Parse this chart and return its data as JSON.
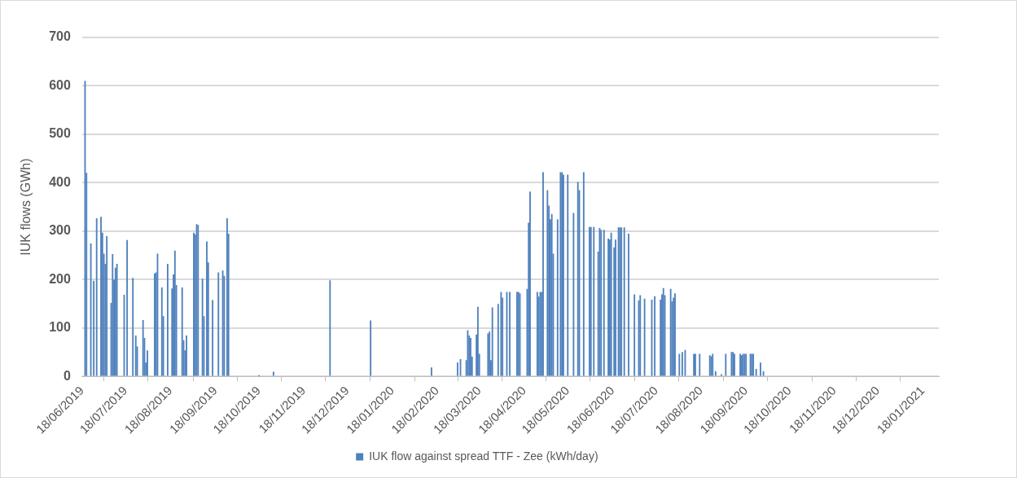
{
  "chart_data": {
    "type": "bar",
    "ylabel": "IUK flows (GWh)",
    "x": [
      "2019-06-20",
      "2019-06-21",
      "2019-06-24",
      "2019-06-26",
      "2019-06-28",
      "2019-07-01",
      "2019-07-02",
      "2019-07-03",
      "2019-07-04",
      "2019-07-05",
      "2019-07-08",
      "2019-07-09",
      "2019-07-10",
      "2019-07-11",
      "2019-07-12",
      "2019-07-17",
      "2019-07-19",
      "2019-07-23",
      "2019-07-25",
      "2019-07-26",
      "2019-07-30",
      "2019-07-31",
      "2019-08-01",
      "2019-08-02",
      "2019-08-07",
      "2019-08-08",
      "2019-08-09",
      "2019-08-12",
      "2019-08-13",
      "2019-08-16",
      "2019-08-19",
      "2019-08-20",
      "2019-08-21",
      "2019-08-22",
      "2019-08-26",
      "2019-08-27",
      "2019-08-28",
      "2019-08-29",
      "2019-09-03",
      "2019-09-04",
      "2019-09-05",
      "2019-09-06",
      "2019-09-09",
      "2019-09-10",
      "2019-09-12",
      "2019-09-13",
      "2019-09-16",
      "2019-09-20",
      "2019-09-23",
      "2019-09-24",
      "2019-09-26",
      "2019-09-27",
      "2019-10-18",
      "2019-10-28",
      "2019-12-06",
      "2020-01-03",
      "2020-02-14",
      "2020-03-03",
      "2020-03-05",
      "2020-03-09",
      "2020-03-10",
      "2020-03-11",
      "2020-03-12",
      "2020-03-13",
      "2020-03-16",
      "2020-03-17",
      "2020-03-18",
      "2020-03-24",
      "2020-03-25",
      "2020-03-26",
      "2020-03-27",
      "2020-03-31",
      "2020-04-02",
      "2020-04-03",
      "2020-04-06",
      "2020-04-08",
      "2020-04-13",
      "2020-04-14",
      "2020-04-15",
      "2020-04-20",
      "2020-04-21",
      "2020-04-22",
      "2020-04-27",
      "2020-04-28",
      "2020-04-29",
      "2020-04-30",
      "2020-05-01",
      "2020-05-04",
      "2020-05-05",
      "2020-05-06",
      "2020-05-07",
      "2020-05-08",
      "2020-05-11",
      "2020-05-13",
      "2020-05-14",
      "2020-05-15",
      "2020-05-18",
      "2020-05-22",
      "2020-05-25",
      "2020-05-26",
      "2020-05-29",
      "2020-06-02",
      "2020-06-03",
      "2020-06-05",
      "2020-06-08",
      "2020-06-09",
      "2020-06-10",
      "2020-06-12",
      "2020-06-15",
      "2020-06-16",
      "2020-06-17",
      "2020-06-19",
      "2020-06-20",
      "2020-06-22",
      "2020-06-23",
      "2020-06-24",
      "2020-06-26",
      "2020-06-29",
      "2020-07-03",
      "2020-07-06",
      "2020-07-07",
      "2020-07-10",
      "2020-07-15",
      "2020-07-17",
      "2020-07-21",
      "2020-07-22",
      "2020-07-23",
      "2020-07-24",
      "2020-07-28",
      "2020-07-29",
      "2020-07-30",
      "2020-07-31",
      "2020-08-03",
      "2020-08-05",
      "2020-08-07",
      "2020-08-13",
      "2020-08-14",
      "2020-08-17",
      "2020-08-24",
      "2020-08-25",
      "2020-08-26",
      "2020-08-28",
      "2020-09-01",
      "2020-09-04",
      "2020-09-08",
      "2020-09-09",
      "2020-09-10",
      "2020-09-14",
      "2020-09-15",
      "2020-09-16",
      "2020-09-17",
      "2020-09-18",
      "2020-09-21",
      "2020-09-22",
      "2020-09-23",
      "2020-09-25",
      "2020-09-28",
      "2020-09-30"
    ],
    "series": [
      {
        "name": "IUK flow against spread TTF - Zee (kWh/day)",
        "color": "#4f81bd",
        "values": [
          610,
          420,
          274,
          197,
          326,
          329,
          296,
          253,
          232,
          289,
          151,
          252,
          199,
          224,
          232,
          168,
          281,
          203,
          84,
          61,
          116,
          79,
          28,
          53,
          212,
          214,
          253,
          183,
          124,
          232,
          181,
          210,
          259,
          188,
          183,
          74,
          53,
          84,
          296,
          293,
          314,
          312,
          201,
          124,
          278,
          235,
          157,
          214,
          218,
          207,
          326,
          294,
          1,
          9,
          198,
          115,
          18,
          28,
          35,
          33,
          95,
          84,
          79,
          40,
          86,
          143,
          46,
          88,
          92,
          33,
          142,
          149,
          174,
          162,
          174,
          174,
          174,
          174,
          171,
          180,
          317,
          381,
          174,
          164,
          174,
          174,
          421,
          384,
          352,
          324,
          335,
          253,
          324,
          421,
          421,
          416,
          416,
          337,
          401,
          384,
          421,
          308,
          308,
          308,
          257,
          306,
          302,
          302,
          284,
          282,
          296,
          266,
          282,
          307,
          307,
          307,
          307,
          294,
          169,
          156,
          167,
          160,
          158,
          165,
          158,
          169,
          182,
          167,
          180,
          154,
          162,
          171,
          46,
          50,
          54,
          46,
          46,
          46,
          43,
          41,
          46,
          10,
          4,
          46,
          50,
          50,
          46,
          46,
          43,
          46,
          46,
          46,
          46,
          46,
          46,
          15,
          28,
          10
        ]
      }
    ],
    "xlim": [
      "2019-06-18",
      "2021-01-29"
    ],
    "xticks": [
      {
        "value": "2019-06-18",
        "label": "18/06/2019"
      },
      {
        "value": "2019-07-18",
        "label": "18/07/2019"
      },
      {
        "value": "2019-08-18",
        "label": "18/08/2019"
      },
      {
        "value": "2019-09-18",
        "label": "18/09/2019"
      },
      {
        "value": "2019-10-18",
        "label": "18/10/2019"
      },
      {
        "value": "2019-11-18",
        "label": "18/11/2019"
      },
      {
        "value": "2019-12-18",
        "label": "18/12/2019"
      },
      {
        "value": "2020-01-18",
        "label": "18/01/2020"
      },
      {
        "value": "2020-02-18",
        "label": "18/02/2020"
      },
      {
        "value": "2020-03-18",
        "label": "18/03/2020"
      },
      {
        "value": "2020-04-18",
        "label": "18/04/2020"
      },
      {
        "value": "2020-05-18",
        "label": "18/05/2020"
      },
      {
        "value": "2020-06-18",
        "label": "18/06/2020"
      },
      {
        "value": "2020-07-18",
        "label": "18/07/2020"
      },
      {
        "value": "2020-08-18",
        "label": "18/08/2020"
      },
      {
        "value": "2020-09-18",
        "label": "18/09/2020"
      },
      {
        "value": "2020-10-18",
        "label": "18/10/2020"
      },
      {
        "value": "2020-11-18",
        "label": "18/11/2020"
      },
      {
        "value": "2020-12-18",
        "label": "18/12/2020"
      },
      {
        "value": "2021-01-18",
        "label": "18/01/2021"
      }
    ],
    "ylim": [
      0,
      700
    ],
    "yticks": [
      0,
      100,
      200,
      300,
      400,
      500,
      600,
      700
    ],
    "grid": "y",
    "legend": "bottom"
  }
}
